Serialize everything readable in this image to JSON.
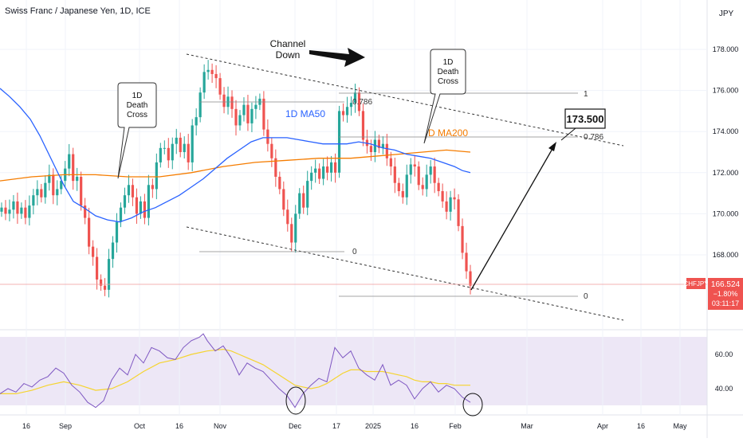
{
  "header": {
    "title": "Swiss Franc / Japanese Yen, 1D, ICE",
    "currency": "JPY"
  },
  "annotations": {
    "channel": "Channel Down",
    "death_cross_left": "1D Death Cross",
    "death_cross_right": "1D Death Cross",
    "ma50_label": "1D MA50",
    "ma200_label": "D MA200",
    "fib_0786_left": "0.786",
    "fib_1": "1",
    "fib_0786_right": "0.786",
    "fib_0_left": "0",
    "fib_0_right": "0",
    "target": "173.500"
  },
  "price_tag": {
    "symbol": "CHFJPY",
    "price": "166.524",
    "change": "−1.80%",
    "countdown": "03:11:17"
  },
  "colors": {
    "up": "#26a69a",
    "down": "#ef5350",
    "ma50": "#2962ff",
    "ma200": "#f57c00",
    "rsi": "#7e57c2",
    "rsi_ma": "#f5d430",
    "band": "#ede7f6"
  },
  "chart_data": {
    "type": "candlestick",
    "title": "Swiss Franc / Japanese Yen, 1D, ICE",
    "price_axis": {
      "ticks": [
        "178.000",
        "176.000",
        "174.000",
        "172.000",
        "170.000",
        "168.000"
      ],
      "range": [
        164.7,
        179.5
      ]
    },
    "time_axis": {
      "ticks": [
        "16",
        "Sep",
        "Oct",
        "16",
        "Nov",
        "Dec",
        "17",
        "2025",
        "16",
        "Feb",
        "Mar",
        "Apr",
        "16",
        "May"
      ]
    },
    "rsi_axis": {
      "ticks": [
        "60.00",
        "40.00"
      ],
      "range": [
        26,
        79
      ]
    },
    "candle_closes": [
      170.3,
      170.0,
      170.2,
      170.6,
      170.0,
      170.3,
      169.8,
      170.4,
      170.9,
      171.2,
      170.8,
      171.5,
      171.9,
      170.9,
      171.2,
      171.6,
      172.2,
      172.9,
      171.6,
      171.8,
      170.4,
      169.8,
      168.4,
      167.9,
      166.8,
      166.5,
      166.3,
      167.8,
      168.6,
      169.6,
      170.3,
      170.9,
      171.4,
      170.8,
      170.0,
      170.6,
      169.8,
      171.4,
      171.2,
      172.5,
      173.2,
      173.2,
      172.6,
      173.4,
      173.7,
      173.0,
      173.4,
      172.5,
      174.3,
      174.7,
      175.9,
      176.9,
      177.0,
      176.8,
      176.6,
      175.8,
      175.2,
      175.7,
      175.1,
      174.3,
      174.8,
      175.3,
      174.4,
      175.1,
      175.3,
      175.6,
      174.1,
      173.4,
      172.7,
      171.8,
      171.2,
      170.2,
      169.5,
      168.6,
      170.0,
      171.0,
      170.3,
      171.6,
      172.0,
      172.2,
      171.7,
      172.3,
      172.0,
      172.5,
      172.0,
      175.0,
      174.8,
      175.2,
      175.4,
      175.9,
      175.0,
      173.6,
      173.3,
      173.0,
      173.6,
      173.2,
      173.4,
      172.7,
      172.3,
      171.5,
      171.1,
      170.8,
      171.9,
      172.4,
      172.3,
      171.4,
      171.2,
      171.9,
      172.3,
      171.5,
      171.1,
      170.6,
      170.1,
      170.8,
      170.7,
      169.4,
      168.1,
      167.2,
      166.5
    ],
    "ma50": [
      [
        0,
        176.1
      ],
      [
        12,
        175.7
      ],
      [
        25,
        175.2
      ],
      [
        38,
        174.6
      ],
      [
        50,
        173.8
      ],
      [
        60,
        173.0
      ],
      [
        70,
        172.2
      ],
      [
        80,
        171.4
      ],
      [
        92,
        170.6
      ],
      [
        105,
        170.3
      ],
      [
        120,
        169.9
      ],
      [
        135,
        169.7
      ],
      [
        150,
        169.6
      ],
      [
        165,
        169.8
      ],
      [
        180,
        170.1
      ],
      [
        195,
        170.3
      ],
      [
        210,
        170.6
      ],
      [
        225,
        170.9
      ],
      [
        240,
        171.3
      ],
      [
        255,
        171.7
      ],
      [
        270,
        172.2
      ],
      [
        285,
        172.7
      ],
      [
        300,
        173.1
      ],
      [
        315,
        173.5
      ],
      [
        330,
        173.7
      ],
      [
        345,
        173.7
      ],
      [
        360,
        173.7
      ],
      [
        375,
        173.6
      ],
      [
        390,
        173.5
      ],
      [
        405,
        173.4
      ],
      [
        420,
        173.4
      ],
      [
        435,
        173.4
      ],
      [
        450,
        173.5
      ],
      [
        465,
        173.4
      ],
      [
        480,
        173.2
      ],
      [
        495,
        173.1
      ],
      [
        510,
        172.9
      ],
      [
        525,
        172.8
      ],
      [
        540,
        172.7
      ],
      [
        555,
        172.5
      ],
      [
        570,
        172.3
      ],
      [
        580,
        172.1
      ],
      [
        590,
        172.0
      ]
    ],
    "ma200": [
      [
        0,
        171.6
      ],
      [
        40,
        171.8
      ],
      [
        80,
        171.9
      ],
      [
        120,
        171.9
      ],
      [
        160,
        171.8
      ],
      [
        200,
        171.8
      ],
      [
        240,
        172.0
      ],
      [
        280,
        172.3
      ],
      [
        320,
        172.5
      ],
      [
        360,
        172.6
      ],
      [
        400,
        172.7
      ],
      [
        440,
        172.7
      ],
      [
        470,
        172.8
      ],
      [
        500,
        172.9
      ],
      [
        530,
        173.0
      ],
      [
        560,
        173.1
      ],
      [
        590,
        173.0
      ]
    ],
    "rsi": [
      [
        0,
        37
      ],
      [
        10,
        40
      ],
      [
        20,
        38
      ],
      [
        30,
        43
      ],
      [
        40,
        41
      ],
      [
        50,
        45
      ],
      [
        60,
        47
      ],
      [
        70,
        52
      ],
      [
        80,
        49
      ],
      [
        90,
        42
      ],
      [
        100,
        38
      ],
      [
        110,
        32
      ],
      [
        120,
        29
      ],
      [
        130,
        33
      ],
      [
        140,
        45
      ],
      [
        150,
        52
      ],
      [
        160,
        48
      ],
      [
        170,
        60
      ],
      [
        180,
        55
      ],
      [
        190,
        64
      ],
      [
        200,
        62
      ],
      [
        210,
        58
      ],
      [
        220,
        57
      ],
      [
        230,
        64
      ],
      [
        240,
        68
      ],
      [
        250,
        70
      ],
      [
        255,
        72
      ],
      [
        260,
        68
      ],
      [
        270,
        62
      ],
      [
        280,
        65
      ],
      [
        290,
        58
      ],
      [
        300,
        48
      ],
      [
        310,
        55
      ],
      [
        320,
        52
      ],
      [
        330,
        50
      ],
      [
        340,
        45
      ],
      [
        350,
        40
      ],
      [
        360,
        36
      ],
      [
        370,
        29
      ],
      [
        380,
        37
      ],
      [
        390,
        42
      ],
      [
        400,
        46
      ],
      [
        410,
        44
      ],
      [
        420,
        64
      ],
      [
        430,
        58
      ],
      [
        440,
        62
      ],
      [
        450,
        52
      ],
      [
        460,
        48
      ],
      [
        470,
        45
      ],
      [
        480,
        54
      ],
      [
        490,
        42
      ],
      [
        500,
        45
      ],
      [
        510,
        42
      ],
      [
        520,
        34
      ],
      [
        530,
        40
      ],
      [
        540,
        44
      ],
      [
        550,
        38
      ],
      [
        560,
        42
      ],
      [
        570,
        40
      ],
      [
        580,
        35
      ],
      [
        590,
        32
      ]
    ],
    "rsi_ma": [
      [
        0,
        37
      ],
      [
        20,
        37
      ],
      [
        40,
        39
      ],
      [
        60,
        42
      ],
      [
        80,
        44
      ],
      [
        100,
        42
      ],
      [
        120,
        39
      ],
      [
        140,
        40
      ],
      [
        160,
        44
      ],
      [
        180,
        50
      ],
      [
        200,
        55
      ],
      [
        220,
        57
      ],
      [
        240,
        60
      ],
      [
        260,
        62
      ],
      [
        280,
        63
      ],
      [
        290,
        62
      ],
      [
        300,
        60
      ],
      [
        310,
        58
      ],
      [
        320,
        56
      ],
      [
        330,
        54
      ],
      [
        340,
        51
      ],
      [
        350,
        48
      ],
      [
        360,
        45
      ],
      [
        370,
        42
      ],
      [
        380,
        41
      ],
      [
        390,
        40
      ],
      [
        400,
        41
      ],
      [
        410,
        43
      ],
      [
        420,
        46
      ],
      [
        430,
        49
      ],
      [
        440,
        51
      ],
      [
        450,
        51
      ],
      [
        460,
        50
      ],
      [
        470,
        50
      ],
      [
        480,
        50
      ],
      [
        490,
        49
      ],
      [
        500,
        48
      ],
      [
        510,
        47
      ],
      [
        520,
        45
      ],
      [
        530,
        44
      ],
      [
        540,
        44
      ],
      [
        550,
        43
      ],
      [
        560,
        43
      ],
      [
        570,
        42
      ],
      [
        580,
        42
      ],
      [
        590,
        42
      ]
    ]
  }
}
